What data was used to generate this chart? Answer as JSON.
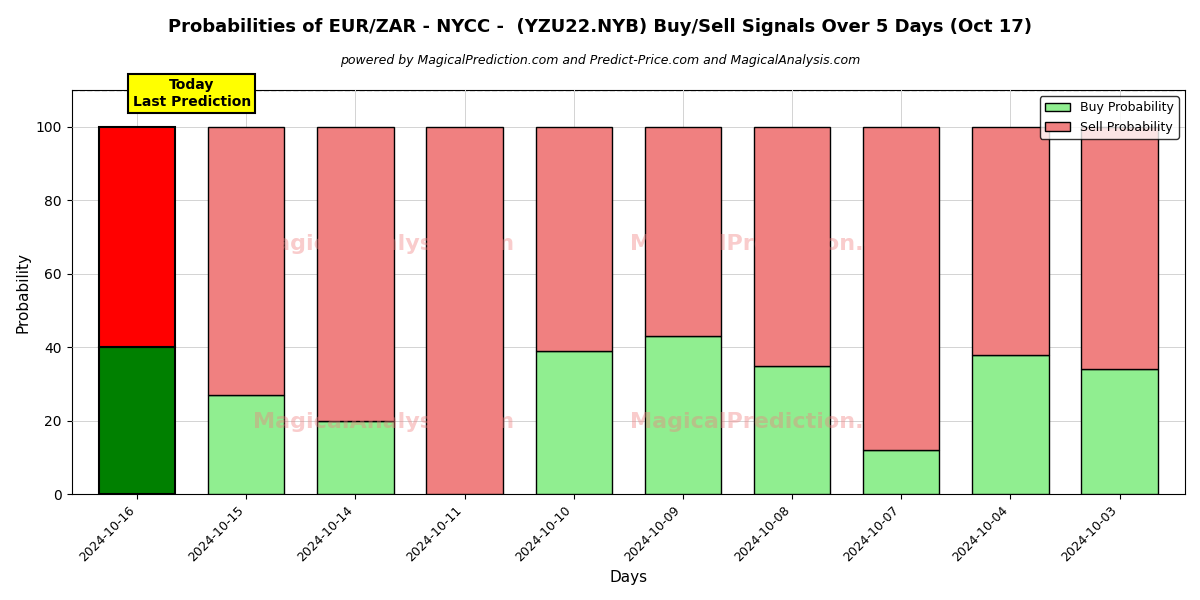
{
  "title": "Probabilities of EUR/ZAR - NYCC -  (YZU22.NYB) Buy/Sell Signals Over 5 Days (Oct 17)",
  "subtitle": "powered by MagicalPrediction.com and Predict-Price.com and MagicalAnalysis.com",
  "xlabel": "Days",
  "ylabel": "Probability",
  "dates": [
    "2024-10-16",
    "2024-10-15",
    "2024-10-14",
    "2024-10-11",
    "2024-10-10",
    "2024-10-09",
    "2024-10-08",
    "2024-10-07",
    "2024-10-04",
    "2024-10-03"
  ],
  "buy_probs": [
    40,
    27,
    20,
    0,
    39,
    43,
    35,
    12,
    38,
    34
  ],
  "sell_probs": [
    60,
    73,
    80,
    100,
    61,
    57,
    65,
    88,
    62,
    66
  ],
  "today_buy_color": "#008000",
  "today_sell_color": "#ff0000",
  "buy_color": "#90EE90",
  "sell_color": "#F08080",
  "today_label_bg": "#ffff00",
  "today_label_text": "Today\nLast Prediction",
  "legend_buy": "Buy Probability",
  "legend_sell": "Sell Probability",
  "ylim": [
    0,
    110
  ],
  "dashed_line_y": 110,
  "bar_width": 0.7,
  "figsize": [
    12,
    6
  ],
  "dpi": 100
}
